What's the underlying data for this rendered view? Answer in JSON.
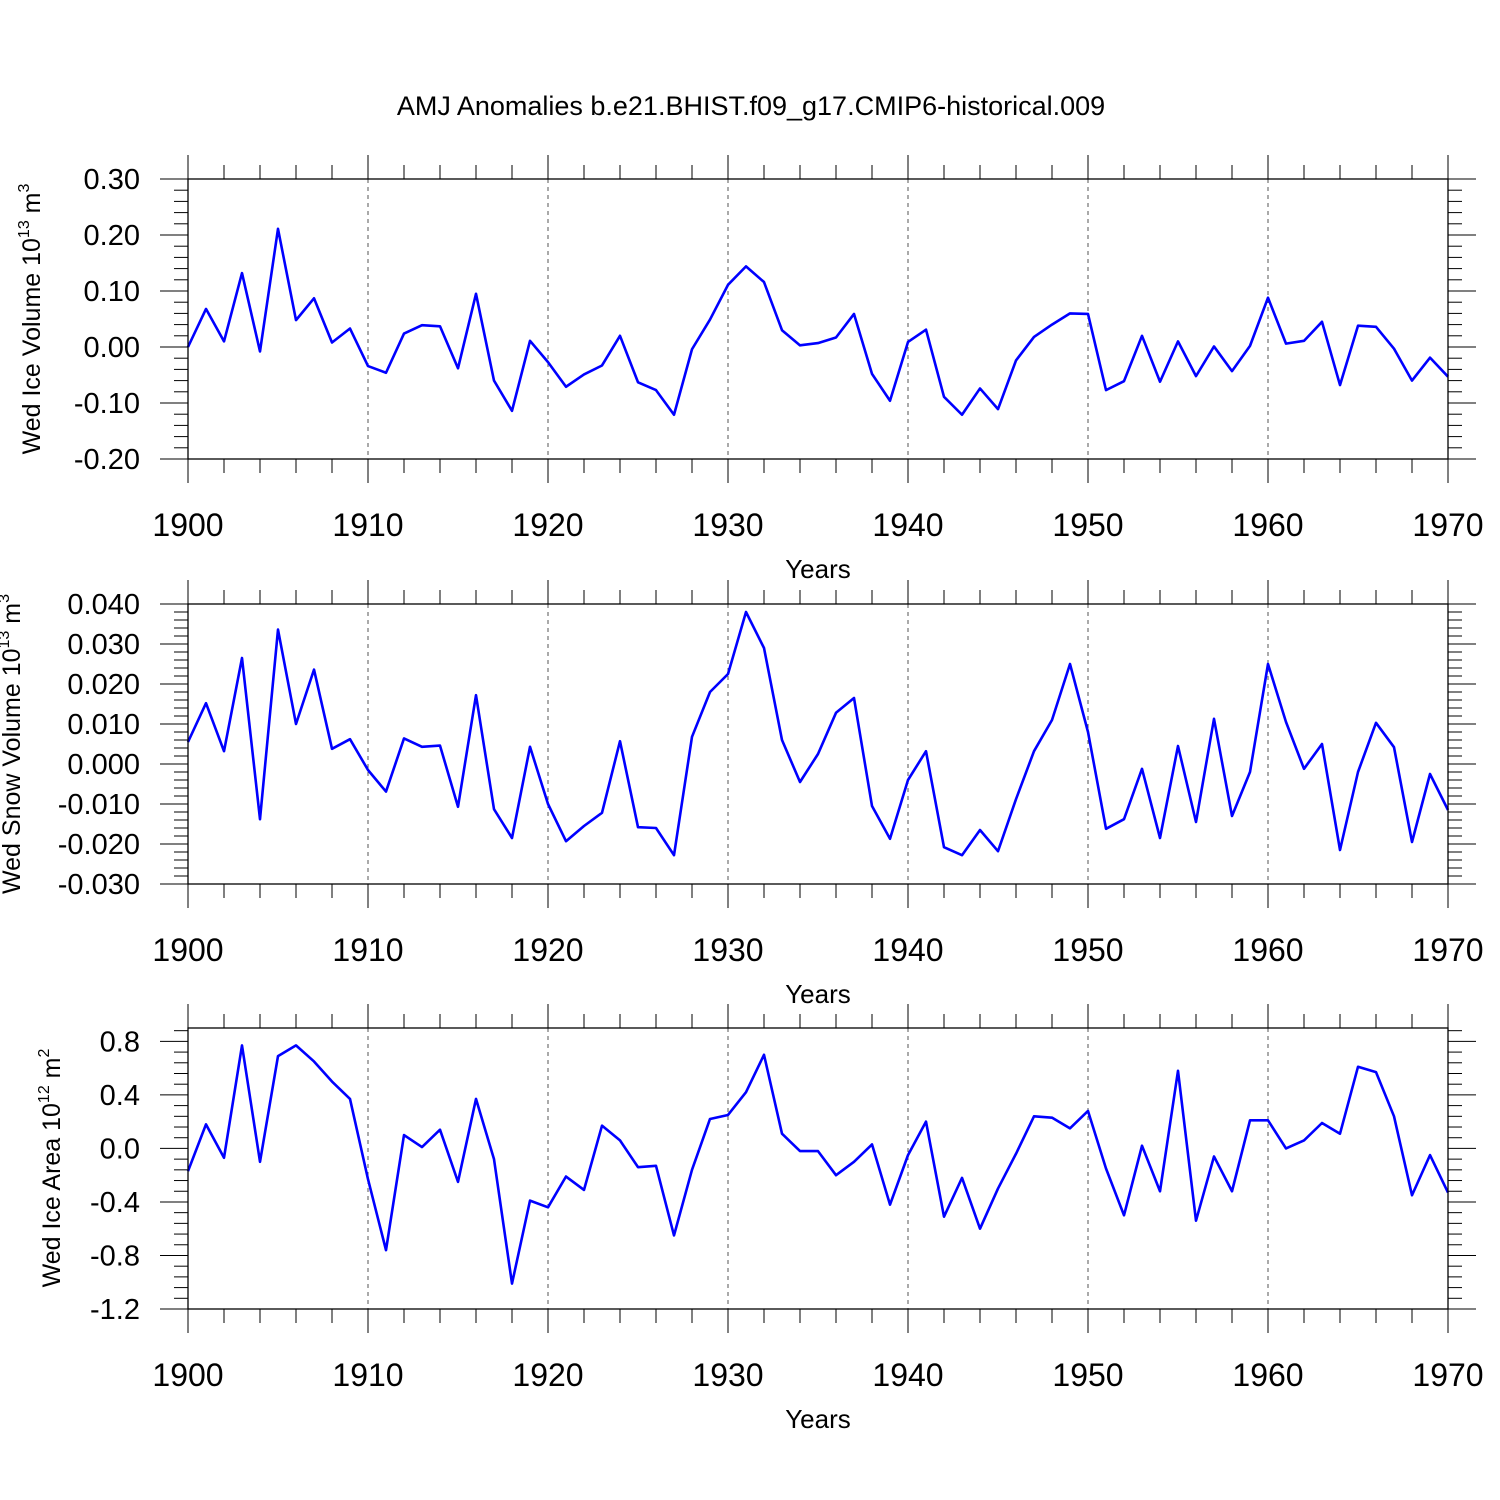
{
  "title": "AMJ Anomalies b.e21.BHIST.f09_g17.CMIP6-historical.009",
  "chart_data": [
    {
      "type": "line",
      "ylabel": "Wed Ice Volume 10",
      "ylabel_sup": "13",
      "ylabel_unit": "m",
      "ylabel_unit_sup": "3",
      "xlabel": "Years",
      "xlim": [
        1900,
        1970
      ],
      "ylim": [
        -0.2,
        0.3
      ],
      "frame_ylim": [
        -0.2,
        0.3
      ],
      "y_ticks": [
        -0.2,
        -0.1,
        0.0,
        0.1,
        0.2,
        0.3
      ],
      "y_tick_labels": [
        "-0.20",
        "-0.10",
        "0.00",
        "0.10",
        "0.20",
        "0.30"
      ],
      "y_minor_step": 0.02,
      "x_ticks": [
        1900,
        1910,
        1920,
        1930,
        1940,
        1950,
        1960,
        1970
      ],
      "x_tick_labels": [
        "1900",
        "1910",
        "1920",
        "1930",
        "1940",
        "1950",
        "1960",
        "1970"
      ],
      "x_grid": [
        1910,
        1920,
        1930,
        1940,
        1950,
        1960
      ],
      "series": [
        {
          "name": "Wed Ice Volume",
          "color": "#0000ff",
          "x_start": 1900,
          "values": [
            0.0,
            0.068,
            0.01,
            0.132,
            -0.008,
            0.211,
            0.048,
            0.087,
            0.008,
            0.033,
            -0.034,
            -0.046,
            0.024,
            0.039,
            0.037,
            -0.038,
            0.095,
            -0.06,
            -0.114,
            0.011,
            -0.027,
            -0.071,
            -0.049,
            -0.033,
            0.02,
            -0.063,
            -0.077,
            -0.121,
            -0.004,
            0.049,
            0.111,
            0.144,
            0.116,
            0.03,
            0.003,
            0.007,
            0.017,
            0.059,
            -0.048,
            -0.096,
            0.009,
            0.031,
            -0.089,
            -0.121,
            -0.074,
            -0.111,
            -0.024,
            0.018,
            0.04,
            0.06,
            0.059,
            -0.077,
            -0.061,
            0.02,
            -0.062,
            0.01,
            -0.052,
            0.001,
            -0.043,
            0.002,
            0.088,
            0.006,
            0.011,
            0.045,
            -0.068,
            0.038,
            0.036,
            -0.003,
            -0.06,
            -0.019,
            -0.053
          ]
        }
      ]
    },
    {
      "type": "line",
      "ylabel": "Wed Snow Volume 10",
      "ylabel_sup": "13",
      "ylabel_unit": "m",
      "ylabel_unit_sup": "3",
      "xlabel": "Years",
      "xlim": [
        1900,
        1970
      ],
      "ylim": [
        -0.03,
        0.04
      ],
      "frame_ylim": [
        -0.03,
        0.04
      ],
      "y_ticks": [
        -0.03,
        -0.02,
        -0.01,
        0.0,
        0.01,
        0.02,
        0.03,
        0.04
      ],
      "y_tick_labels": [
        "-0.030",
        "-0.020",
        "-0.010",
        "0.000",
        "0.010",
        "0.020",
        "0.030",
        "0.040"
      ],
      "y_minor_step": 0.002,
      "x_ticks": [
        1900,
        1910,
        1920,
        1930,
        1940,
        1950,
        1960,
        1970
      ],
      "x_tick_labels": [
        "1900",
        "1910",
        "1920",
        "1930",
        "1940",
        "1950",
        "1960",
        "1970"
      ],
      "x_grid": [
        1910,
        1920,
        1930,
        1940,
        1950,
        1960
      ],
      "series": [
        {
          "name": "Wed Snow Volume",
          "color": "#0000ff",
          "x_start": 1900,
          "values": [
            0.0055,
            0.0152,
            0.0032,
            0.0265,
            -0.0138,
            0.0336,
            0.01,
            0.0236,
            0.0038,
            0.0062,
            -0.0015,
            -0.0069,
            0.0064,
            0.0043,
            0.0046,
            -0.0107,
            0.0172,
            -0.0113,
            -0.0185,
            0.0043,
            -0.01,
            -0.0193,
            -0.0155,
            -0.0122,
            0.0057,
            -0.0158,
            -0.016,
            -0.0228,
            0.0068,
            0.018,
            0.0225,
            0.038,
            0.029,
            0.006,
            -0.0045,
            0.0025,
            0.0128,
            0.0165,
            -0.0105,
            -0.0187,
            -0.004,
            0.0032,
            -0.0208,
            -0.0228,
            -0.0165,
            -0.0218,
            -0.0088,
            0.0032,
            0.011,
            0.025,
            0.008,
            -0.0162,
            -0.0138,
            -0.0012,
            -0.0185,
            0.0045,
            -0.0145,
            0.0113,
            -0.013,
            -0.002,
            0.025,
            0.0105,
            -0.0012,
            0.005,
            -0.0215,
            -0.002,
            0.0103,
            0.0042,
            -0.0195,
            -0.0025,
            -0.0115
          ]
        }
      ]
    },
    {
      "type": "line",
      "ylabel": "Wed Ice Area 10",
      "ylabel_sup": "12",
      "ylabel_unit": "m",
      "ylabel_unit_sup": "2",
      "xlabel": "Years",
      "xlim": [
        1900,
        1970
      ],
      "ylim": [
        -1.2,
        0.8
      ],
      "frame_ylim": [
        -1.2,
        0.9
      ],
      "y_ticks": [
        -1.2,
        -0.8,
        -0.4,
        0.0,
        0.4,
        0.8
      ],
      "y_tick_labels": [
        "-1.2",
        "-0.8",
        "-0.4",
        "0.0",
        "0.4",
        "0.8"
      ],
      "y_minor_step": 0.08,
      "x_ticks": [
        1900,
        1910,
        1920,
        1930,
        1940,
        1950,
        1960,
        1970
      ],
      "x_tick_labels": [
        "1900",
        "1910",
        "1920",
        "1930",
        "1940",
        "1950",
        "1960",
        "1970"
      ],
      "x_grid": [
        1910,
        1920,
        1930,
        1940,
        1950,
        1960
      ],
      "series": [
        {
          "name": "Wed Ice Area",
          "color": "#0000ff",
          "x_start": 1900,
          "values": [
            -0.17,
            0.18,
            -0.07,
            0.77,
            -0.1,
            0.69,
            0.77,
            0.65,
            0.5,
            0.37,
            -0.23,
            -0.76,
            0.1,
            0.01,
            0.14,
            -0.25,
            0.37,
            -0.08,
            -1.01,
            -0.39,
            -0.44,
            -0.21,
            -0.31,
            0.17,
            0.06,
            -0.14,
            -0.13,
            -0.65,
            -0.16,
            0.22,
            0.25,
            0.42,
            0.7,
            0.11,
            -0.02,
            -0.02,
            -0.2,
            -0.1,
            0.03,
            -0.42,
            -0.05,
            0.2,
            -0.51,
            -0.22,
            -0.6,
            -0.3,
            -0.04,
            0.24,
            0.23,
            0.15,
            0.28,
            -0.15,
            -0.5,
            0.02,
            -0.32,
            0.58,
            -0.54,
            -0.06,
            -0.32,
            0.21,
            0.21,
            0.0,
            0.06,
            0.19,
            0.11,
            0.61,
            0.57,
            0.24,
            -0.35,
            -0.05,
            -0.33
          ]
        }
      ]
    }
  ]
}
